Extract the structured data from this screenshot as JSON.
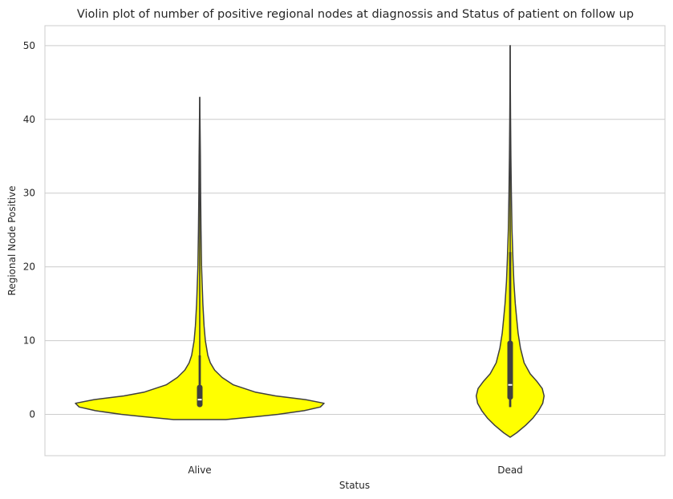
{
  "chart_data": {
    "type": "violin",
    "title": "Violin plot of number of positive regional nodes at diagnossis and Status of patient on follow up",
    "xlabel": "Status",
    "ylabel": "Regional Node Positive",
    "ylim": [
      -5.6,
      52.7
    ],
    "yticks": [
      0,
      10,
      20,
      30,
      40,
      50
    ],
    "grid": true,
    "violin_color": "#ffff00",
    "categories": [
      "Alive",
      "Dead"
    ],
    "violins": [
      {
        "category": "Alive",
        "min": 1,
        "q1": 1,
        "median": 2,
        "q3": 4,
        "upper_whisker": 8,
        "max": 43,
        "density_y": [
          -0.7,
          -0.3,
          0,
          0.5,
          1.0,
          1.5,
          2.0,
          2.5,
          3.0,
          4.0,
          5.0,
          6.0,
          7.0,
          8.0,
          10.0,
          12.0,
          15.0,
          20.0,
          25.0,
          30.0,
          35.0,
          43.0
        ],
        "density_w": [
          0.21,
          0.46,
          0.63,
          0.84,
          0.97,
          1.0,
          0.85,
          0.61,
          0.45,
          0.27,
          0.18,
          0.12,
          0.085,
          0.065,
          0.045,
          0.035,
          0.025,
          0.015,
          0.01,
          0.007,
          0.005,
          0.0
        ]
      },
      {
        "category": "Dead",
        "min": 1,
        "q1": 2,
        "median": 4,
        "q3": 10,
        "upper_whisker": 22,
        "max": 50,
        "density_y": [
          -3.1,
          -2.5,
          -1.5,
          -0.5,
          0.5,
          1.5,
          2.5,
          3.5,
          4.5,
          5.5,
          7.0,
          9.0,
          11.0,
          13.0,
          15.0,
          18.0,
          21.0,
          25.0,
          30.0,
          35.0,
          40.0,
          45.0,
          50.0
        ],
        "density_w": [
          0.0,
          0.14,
          0.33,
          0.49,
          0.61,
          0.7,
          0.73,
          0.69,
          0.57,
          0.43,
          0.3,
          0.22,
          0.17,
          0.14,
          0.11,
          0.08,
          0.06,
          0.04,
          0.025,
          0.015,
          0.008,
          0.004,
          0.0
        ]
      }
    ]
  }
}
